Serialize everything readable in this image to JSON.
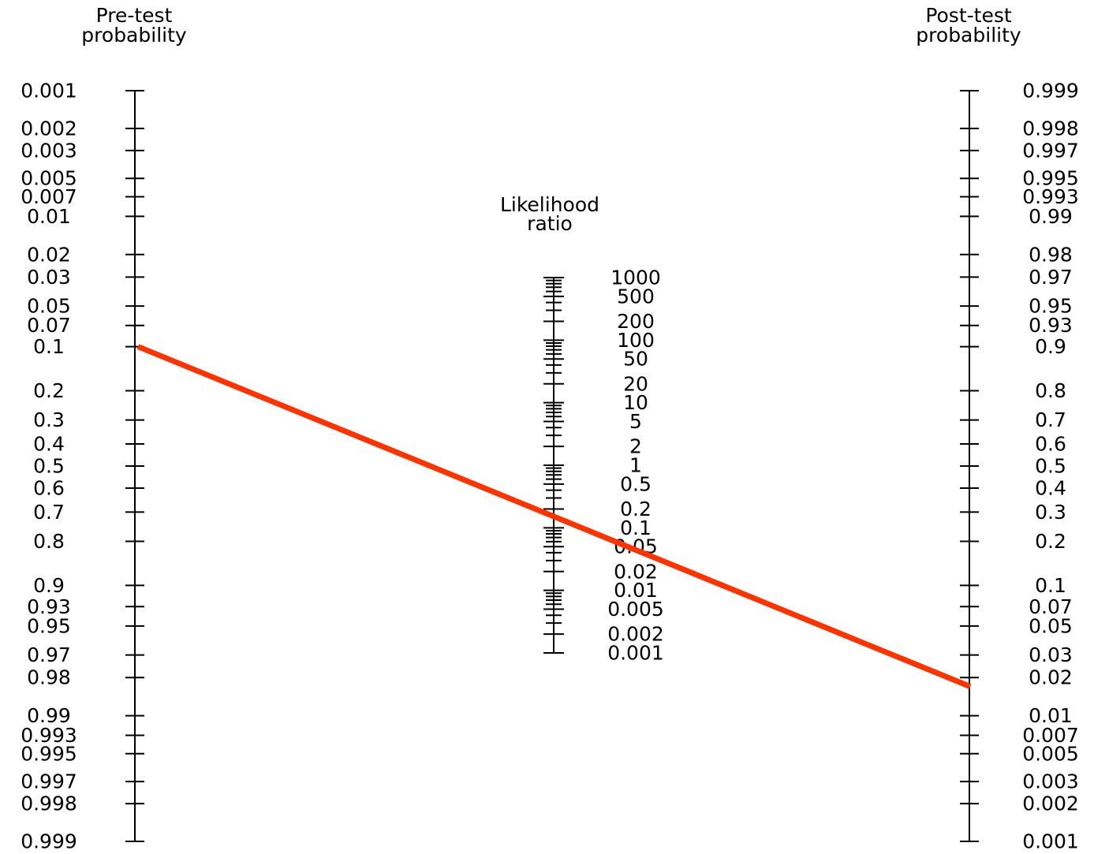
{
  "chart_data": {
    "type": "nomogram",
    "axes": {
      "pretest": {
        "title": [
          "Pre-test",
          "probability"
        ],
        "ticks": [
          "0.001",
          "0.002",
          "0.003",
          "0.005",
          "0.007",
          "0.01",
          "0.02",
          "0.03",
          "0.05",
          "0.07",
          "0.1",
          "0.2",
          "0.3",
          "0.4",
          "0.5",
          "0.6",
          "0.7",
          "0.8",
          "0.9",
          "0.93",
          "0.95",
          "0.97",
          "0.98",
          "0.99",
          "0.993",
          "0.995",
          "0.997",
          "0.998",
          "0.999"
        ]
      },
      "likelihood_ratio": {
        "title": [
          "Likelihood",
          "ratio"
        ],
        "ticks": [
          "1000",
          "500",
          "200",
          "100",
          "50",
          "20",
          "10",
          "5",
          "2",
          "1",
          "0.5",
          "0.2",
          "0.1",
          "0.05",
          "0.02",
          "0.01",
          "0.005",
          "0.002",
          "0.001"
        ]
      },
      "posttest": {
        "title": [
          "Post-test",
          "probability"
        ],
        "ticks": [
          "0.999",
          "0.998",
          "0.997",
          "0.995",
          "0.993",
          "0.99",
          "0.98",
          "0.97",
          "0.95",
          "0.93",
          "0.9",
          "0.8",
          "0.7",
          "0.6",
          "0.5",
          "0.4",
          "0.3",
          "0.2",
          "0.1",
          "0.07",
          "0.05",
          "0.03",
          "0.02",
          "0.01",
          "0.007",
          "0.005",
          "0.003",
          "0.002",
          "0.001"
        ]
      }
    },
    "line": {
      "pretest_probability": 0.1,
      "likelihood_ratio": 0.15,
      "posttest_probability": 0.017,
      "color": "#ff3300"
    }
  }
}
